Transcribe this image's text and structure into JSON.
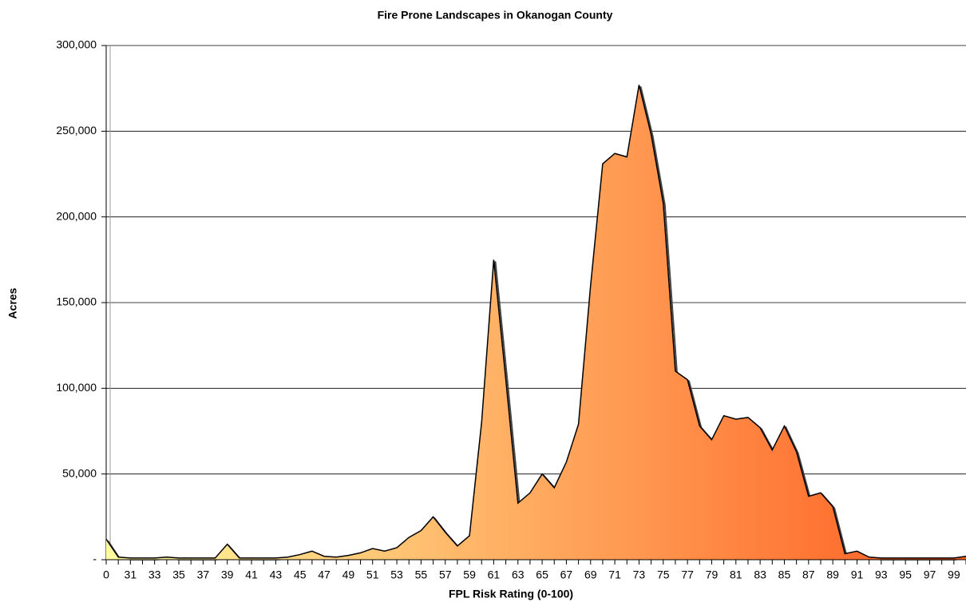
{
  "chart_data": {
    "type": "area",
    "title": "Fire Prone Landscapes in Okanogan County",
    "x_label": "FPL Risk Rating (0-100)",
    "y_label": "Acres",
    "categories": [
      0,
      null,
      31,
      null,
      33,
      null,
      35,
      null,
      37,
      null,
      39,
      null,
      41,
      null,
      43,
      null,
      45,
      null,
      47,
      null,
      49,
      null,
      51,
      null,
      53,
      null,
      55,
      null,
      57,
      null,
      59,
      null,
      61,
      null,
      63,
      null,
      65,
      null,
      67,
      null,
      69,
      null,
      71,
      null,
      73,
      null,
      75,
      null,
      77,
      null,
      79,
      null,
      81,
      null,
      83,
      null,
      85,
      null,
      87,
      null,
      89,
      null,
      91,
      null,
      93,
      null,
      95,
      null,
      97,
      null,
      99,
      null
    ],
    "values": [
      12000,
      1500,
      1000,
      1000,
      1000,
      1500,
      1000,
      1000,
      1000,
      1000,
      9000,
      1000,
      1000,
      1000,
      1000,
      1500,
      3000,
      5000,
      2000,
      1500,
      2500,
      4000,
      6500,
      5000,
      7000,
      13000,
      17000,
      25000,
      16000,
      8000,
      14000,
      80000,
      175000,
      105000,
      33000,
      39000,
      50000,
      42000,
      57000,
      79000,
      160000,
      231000,
      237000,
      235000,
      277000,
      248000,
      208000,
      110000,
      105000,
      78000,
      70000,
      84000,
      82000,
      83000,
      77000,
      64000,
      78000,
      63000,
      37000,
      39000,
      31000,
      3500,
      5000,
      1500,
      1000,
      1000,
      1000,
      1000,
      1000,
      1000,
      1000,
      2000
    ],
    "gradient": [
      "#fffaa0",
      "#ff5a1e"
    ],
    "line_color": "#000000",
    "ylim": [
      0,
      300000
    ],
    "yticks": [
      {
        "value": 0,
        "label": "-"
      },
      {
        "value": 50000,
        "label": "50,000"
      },
      {
        "value": 100000,
        "label": "100,000"
      },
      {
        "value": 150000,
        "label": "150,000"
      },
      {
        "value": 200000,
        "label": "200,000"
      },
      {
        "value": 250000,
        "label": "250,000"
      },
      {
        "value": 300000,
        "label": "300,000"
      }
    ],
    "grid": true
  }
}
